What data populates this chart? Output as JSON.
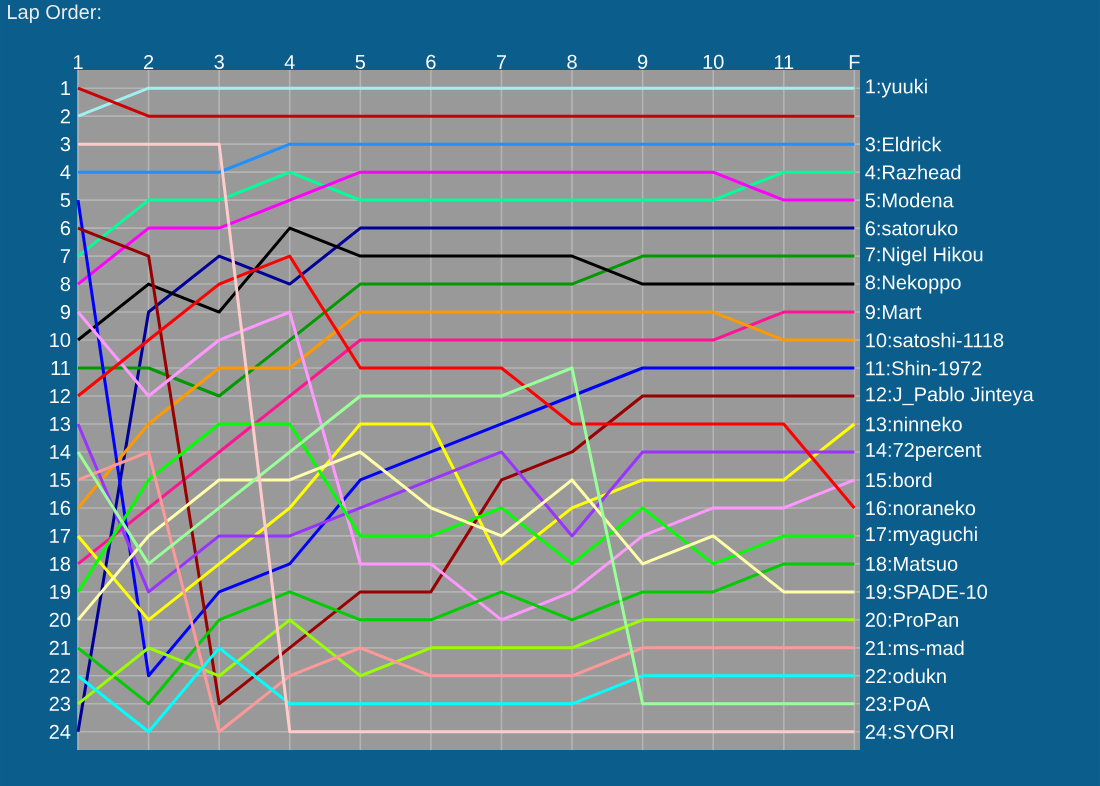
{
  "chart_data": {
    "type": "line",
    "title": "Lap Order:",
    "categories": [
      "1",
      "2",
      "3",
      "4",
      "5",
      "6",
      "7",
      "8",
      "9",
      "10",
      "11",
      "F"
    ],
    "ylim": [
      24.65,
      0.35
    ],
    "yticks": [
      1,
      2,
      3,
      4,
      5,
      6,
      7,
      8,
      9,
      10,
      11,
      12,
      13,
      14,
      15,
      16,
      17,
      18,
      19,
      20,
      21,
      22,
      23,
      24
    ],
    "grid": true,
    "marker": "none",
    "line_style": "solid",
    "series": [
      {
        "name": "1:yuuki",
        "color": "#a0f0f0",
        "values": [
          2,
          1,
          1,
          1,
          1,
          1,
          1,
          1,
          1,
          1,
          1,
          1
        ]
      },
      {
        "color": "#cc0000",
        "values": [
          1,
          2,
          2,
          2,
          2,
          2,
          2,
          2,
          2,
          2,
          2,
          2
        ]
      },
      {
        "name": "3:Eldrick",
        "color": "#1e90ff",
        "values": [
          4,
          4,
          4,
          3,
          3,
          3,
          3,
          3,
          3,
          3,
          3,
          3
        ]
      },
      {
        "name": "4:Razhead",
        "color": "#00ff99",
        "values": [
          7,
          5,
          5,
          4,
          5,
          5,
          5,
          5,
          5,
          5,
          4,
          4
        ]
      },
      {
        "name": "5:Modena",
        "color": "#ff00ff",
        "values": [
          8,
          6,
          6,
          5,
          4,
          4,
          4,
          4,
          4,
          4,
          5,
          5
        ]
      },
      {
        "name": "6:satoruko",
        "color": "#000099",
        "values": [
          24,
          9,
          7,
          8,
          6,
          6,
          6,
          6,
          6,
          6,
          6,
          6
        ]
      },
      {
        "name": "7:Nigel Hikou",
        "color": "#009900",
        "values": [
          11,
          11,
          12,
          10,
          8,
          8,
          8,
          8,
          7,
          7,
          7,
          7
        ]
      },
      {
        "name": "8:Nekoppo",
        "color": "#000000",
        "values": [
          10,
          8,
          9,
          6,
          7,
          7,
          7,
          7,
          8,
          8,
          8,
          8
        ]
      },
      {
        "name": "9:Mart",
        "color": "#ff1493",
        "values": [
          18,
          16,
          14,
          12,
          10,
          10,
          10,
          10,
          10,
          10,
          9,
          9
        ]
      },
      {
        "name": "10:satoshi-1118",
        "color": "#ff9900",
        "values": [
          16,
          13,
          11,
          11,
          9,
          9,
          9,
          9,
          9,
          9,
          10,
          10
        ]
      },
      {
        "name": "11:Shin-1972",
        "color": "#0000ff",
        "values": [
          5,
          22,
          19,
          18,
          15,
          14,
          13,
          12,
          11,
          11,
          11,
          11
        ]
      },
      {
        "name": "12:J_Pablo Jinteya",
        "color": "#990000",
        "values": [
          6,
          7,
          23,
          21,
          19,
          19,
          15,
          14,
          12,
          12,
          12,
          12
        ]
      },
      {
        "name": "13:ninneko",
        "color": "#ffff00",
        "values": [
          17,
          20,
          18,
          16,
          13,
          13,
          18,
          16,
          15,
          15,
          15,
          13
        ]
      },
      {
        "name": "14:72percent",
        "color": "#9933ff",
        "values": [
          13,
          19,
          17,
          17,
          16,
          15,
          14,
          17,
          14,
          14,
          14,
          14
        ]
      },
      {
        "name": "15:bord",
        "color": "#ff99ff",
        "values": [
          9,
          12,
          10,
          9,
          18,
          18,
          20,
          19,
          17,
          16,
          16,
          15
        ]
      },
      {
        "name": "16:noraneko",
        "color": "#ff0000",
        "values": [
          12,
          10,
          8,
          7,
          11,
          11,
          11,
          13,
          13,
          13,
          13,
          16
        ]
      },
      {
        "name": "17:myaguchi",
        "color": "#00ff00",
        "values": [
          19,
          15,
          13,
          13,
          17,
          17,
          16,
          18,
          16,
          18,
          17,
          17
        ]
      },
      {
        "name": "18:Matsuo",
        "color": "#00cc00",
        "values": [
          21,
          23,
          20,
          19,
          20,
          20,
          19,
          20,
          19,
          19,
          18,
          18
        ]
      },
      {
        "name": "19:SPADE-10",
        "color": "#ffffaa",
        "values": [
          20,
          17,
          15,
          15,
          14,
          16,
          17,
          15,
          18,
          17,
          19,
          19
        ]
      },
      {
        "name": "20:ProPan",
        "color": "#99ff00",
        "values": [
          23,
          21,
          22,
          20,
          22,
          21,
          21,
          21,
          20,
          20,
          20,
          20
        ]
      },
      {
        "name": "21:ms-mad",
        "color": "#ff9999",
        "values": [
          15,
          14,
          24,
          22,
          21,
          22,
          22,
          22,
          21,
          21,
          21,
          21
        ]
      },
      {
        "name": "22:odukn",
        "color": "#00ffff",
        "values": [
          22,
          24,
          21,
          23,
          23,
          23,
          23,
          23,
          22,
          22,
          22,
          22
        ]
      },
      {
        "name": "23:PoA",
        "color": "#99ff99",
        "values": [
          14,
          18,
          16,
          14,
          12,
          12,
          12,
          11,
          23,
          23,
          23,
          23
        ]
      },
      {
        "name": "24:SYORI",
        "color": "#ffcccc",
        "values": [
          3,
          3,
          3,
          24,
          24,
          24,
          24,
          24,
          24,
          24,
          24,
          24
        ]
      }
    ]
  }
}
